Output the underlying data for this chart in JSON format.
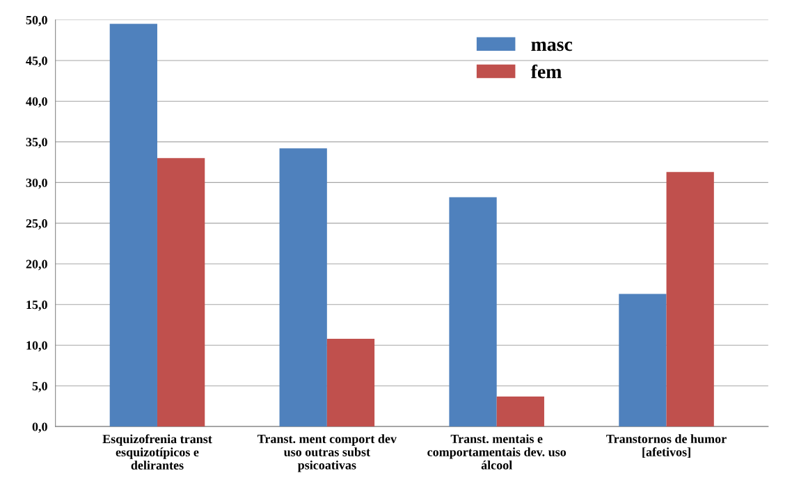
{
  "chart_data": {
    "type": "bar",
    "categories": [
      "Esquizofrenia transt esquizotípicos e delirantes",
      "Transt. ment comport dev uso outras subst psicoativas",
      "Transt. mentais e comportamentais dev. uso álcool",
      "Transtornos de humor [afetivos]"
    ],
    "series": [
      {
        "name": "masc",
        "color": "#4f81bd",
        "values": [
          49.5,
          34.2,
          28.2,
          16.3
        ]
      },
      {
        "name": "fem",
        "color": "#c0504d",
        "values": [
          33.0,
          10.8,
          3.7,
          31.3
        ]
      }
    ],
    "ylim": [
      0,
      50
    ],
    "yticks": [
      {
        "value": 0,
        "label": "0,0"
      },
      {
        "value": 5,
        "label": "5,0"
      },
      {
        "value": 10,
        "label": "10,0"
      },
      {
        "value": 15,
        "label": "15,0"
      },
      {
        "value": 20,
        "label": "20,0"
      },
      {
        "value": 25,
        "label": "25,0"
      },
      {
        "value": 30,
        "label": "30,0"
      },
      {
        "value": 35,
        "label": "35,0"
      },
      {
        "value": 40,
        "label": "40,0"
      },
      {
        "value": 45,
        "label": "45,0"
      },
      {
        "value": 50,
        "label": "50,0"
      }
    ],
    "grid": "y",
    "legend": "top right"
  }
}
